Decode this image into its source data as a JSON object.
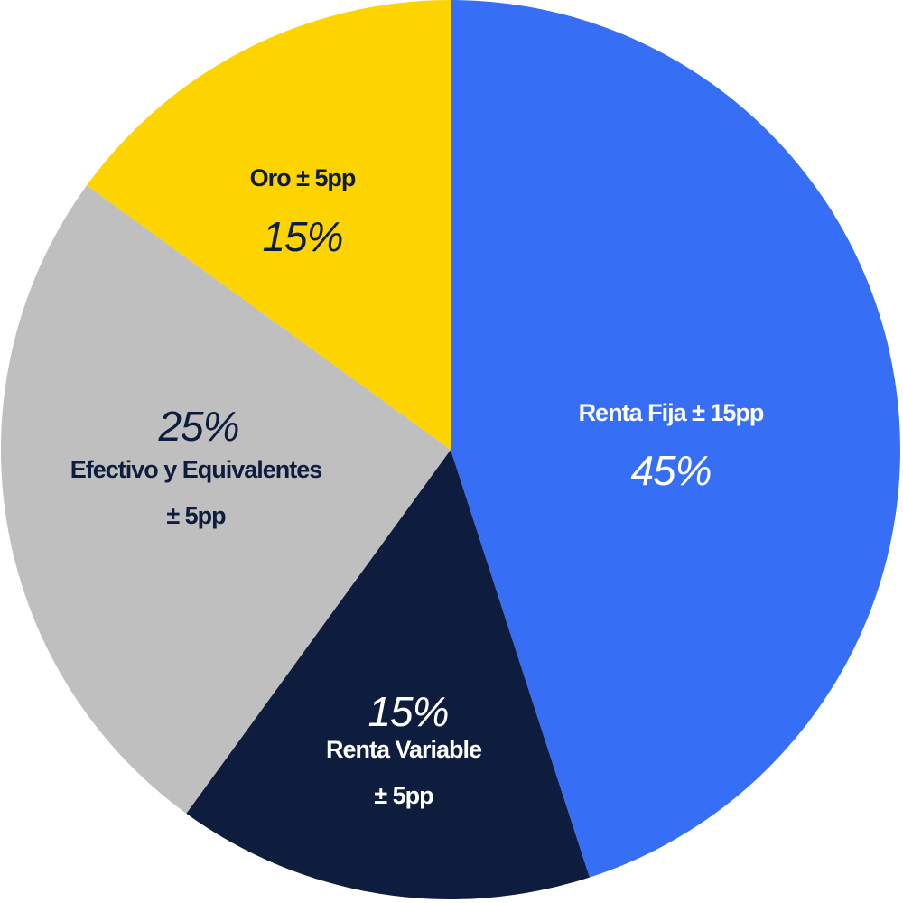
{
  "chart_data": {
    "type": "pie",
    "start_angle_deg": 0,
    "direction": "clockwise",
    "slices": [
      {
        "name": "Renta Fija ± 15pp",
        "name_lines": [
          "Renta Fija ± 15pp"
        ],
        "value": 45,
        "value_label": "45%",
        "color": "#366EF5",
        "text_color": "#FFFFFF"
      },
      {
        "name": "Renta Variable ± 5pp",
        "name_lines": [
          "Renta Variable",
          "± 5pp"
        ],
        "value": 15,
        "value_label": "15%",
        "color": "#0E1D3D",
        "text_color": "#FFFFFF"
      },
      {
        "name": "Efectivo y Equivalentes ± 5pp",
        "name_lines": [
          "Efectivo y Equivalentes",
          "± 5pp"
        ],
        "value": 25,
        "value_label": "25%",
        "color": "#C0BFC0",
        "text_color": "#0E1D3D"
      },
      {
        "name": "Oro ± 5pp",
        "name_lines": [
          "Oro ± 5pp"
        ],
        "value": 15,
        "value_label": "15%",
        "color": "#FDD300",
        "text_color": "#0E1D3D"
      }
    ]
  }
}
